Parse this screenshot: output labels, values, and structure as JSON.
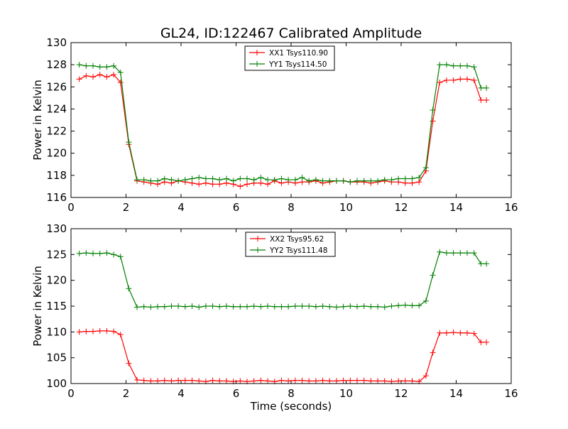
{
  "chart_data": [
    {
      "type": "line",
      "title": "GL24, ID:122467 Calibrated Amplitude",
      "xlabel": "",
      "ylabel": "Power in Kelvin",
      "xlim": [
        0,
        16
      ],
      "ylim": [
        116,
        130
      ],
      "xticks": [
        0,
        2,
        4,
        6,
        8,
        10,
        12,
        14,
        16
      ],
      "yticks": [
        116,
        118,
        120,
        122,
        124,
        126,
        128,
        130
      ],
      "legend_position": "top-center",
      "x": [
        0.3,
        0.55,
        0.8,
        1.05,
        1.3,
        1.55,
        1.8,
        2.1,
        2.4,
        2.65,
        2.9,
        3.15,
        3.4,
        3.65,
        3.9,
        4.15,
        4.4,
        4.65,
        4.9,
        5.15,
        5.4,
        5.65,
        5.9,
        6.15,
        6.4,
        6.65,
        6.9,
        7.15,
        7.4,
        7.65,
        7.9,
        8.15,
        8.4,
        8.65,
        8.9,
        9.15,
        9.4,
        9.65,
        9.9,
        10.15,
        10.4,
        10.65,
        10.9,
        11.15,
        11.4,
        11.65,
        11.9,
        12.15,
        12.4,
        12.65,
        12.9,
        13.15,
        13.4,
        13.65,
        13.9,
        14.15,
        14.4,
        14.65,
        14.9,
        15.1
      ],
      "series": [
        {
          "name": "XX1 Tsys110.90",
          "color": "#ff0000",
          "values": [
            126.7,
            127.0,
            126.9,
            127.1,
            126.9,
            127.1,
            126.4,
            120.8,
            117.5,
            117.4,
            117.3,
            117.2,
            117.4,
            117.3,
            117.5,
            117.4,
            117.3,
            117.2,
            117.3,
            117.2,
            117.2,
            117.3,
            117.2,
            117.0,
            117.2,
            117.3,
            117.3,
            117.2,
            117.5,
            117.3,
            117.4,
            117.3,
            117.4,
            117.4,
            117.5,
            117.3,
            117.4,
            117.5,
            117.5,
            117.4,
            117.4,
            117.4,
            117.3,
            117.4,
            117.5,
            117.4,
            117.4,
            117.3,
            117.3,
            117.4,
            118.4,
            122.9,
            126.4,
            126.6,
            126.6,
            126.7,
            126.7,
            126.6,
            124.8,
            124.8
          ]
        },
        {
          "name": "YY1 Tsys114.50",
          "color": "#008000",
          "values": [
            128.0,
            127.9,
            127.9,
            127.8,
            127.8,
            127.9,
            127.3,
            121.0,
            117.6,
            117.6,
            117.5,
            117.5,
            117.7,
            117.6,
            117.5,
            117.6,
            117.7,
            117.8,
            117.7,
            117.7,
            117.6,
            117.7,
            117.5,
            117.7,
            117.7,
            117.6,
            117.8,
            117.6,
            117.6,
            117.7,
            117.6,
            117.6,
            117.8,
            117.5,
            117.6,
            117.5,
            117.5,
            117.5,
            117.5,
            117.4,
            117.5,
            117.5,
            117.5,
            117.5,
            117.6,
            117.6,
            117.7,
            117.7,
            117.7,
            117.8,
            118.7,
            123.9,
            128.0,
            128.0,
            127.9,
            127.9,
            127.9,
            127.8,
            125.9,
            125.9
          ]
        }
      ]
    },
    {
      "type": "line",
      "title": "",
      "xlabel": "Time (seconds)",
      "ylabel": "Power in Kelvin",
      "xlim": [
        0,
        16
      ],
      "ylim": [
        100,
        130
      ],
      "xticks": [
        0,
        2,
        4,
        6,
        8,
        10,
        12,
        14,
        16
      ],
      "yticks": [
        100,
        105,
        110,
        115,
        120,
        125,
        130
      ],
      "legend_position": "top-center",
      "x": [
        0.3,
        0.55,
        0.8,
        1.05,
        1.3,
        1.55,
        1.8,
        2.1,
        2.4,
        2.65,
        2.9,
        3.15,
        3.4,
        3.65,
        3.9,
        4.15,
        4.4,
        4.65,
        4.9,
        5.15,
        5.4,
        5.65,
        5.9,
        6.15,
        6.4,
        6.65,
        6.9,
        7.15,
        7.4,
        7.65,
        7.9,
        8.15,
        8.4,
        8.65,
        8.9,
        9.15,
        9.4,
        9.65,
        9.9,
        10.15,
        10.4,
        10.65,
        10.9,
        11.15,
        11.4,
        11.65,
        11.9,
        12.15,
        12.4,
        12.65,
        12.9,
        13.15,
        13.4,
        13.65,
        13.9,
        14.15,
        14.4,
        14.65,
        14.9,
        15.1
      ],
      "series": [
        {
          "name": "XX2 Tsys95.62",
          "color": "#ff0000",
          "values": [
            110.0,
            110.1,
            110.1,
            110.2,
            110.2,
            110.1,
            109.5,
            103.9,
            100.7,
            100.6,
            100.5,
            100.5,
            100.6,
            100.5,
            100.6,
            100.6,
            100.6,
            100.5,
            100.4,
            100.6,
            100.5,
            100.5,
            100.4,
            100.5,
            100.4,
            100.5,
            100.6,
            100.5,
            100.4,
            100.6,
            100.5,
            100.6,
            100.6,
            100.5,
            100.5,
            100.6,
            100.5,
            100.5,
            100.6,
            100.6,
            100.6,
            100.6,
            100.5,
            100.5,
            100.5,
            100.4,
            100.5,
            100.5,
            100.5,
            100.4,
            101.5,
            106.0,
            109.8,
            109.8,
            109.9,
            109.8,
            109.8,
            109.7,
            108.0,
            108.0
          ]
        },
        {
          "name": "YY2 Tsys111.48",
          "color": "#008000",
          "values": [
            125.2,
            125.3,
            125.2,
            125.2,
            125.3,
            125.0,
            124.6,
            118.4,
            114.8,
            114.9,
            114.8,
            114.9,
            114.9,
            115.0,
            115.0,
            114.9,
            115.0,
            114.8,
            115.0,
            115.0,
            114.9,
            115.0,
            114.9,
            114.9,
            114.9,
            115.0,
            114.9,
            115.0,
            114.9,
            114.9,
            114.9,
            115.0,
            115.0,
            115.0,
            114.9,
            115.0,
            114.9,
            114.8,
            114.9,
            115.0,
            114.9,
            115.0,
            114.9,
            114.9,
            114.8,
            115.0,
            115.1,
            115.2,
            115.1,
            115.1,
            116.0,
            121.0,
            125.5,
            125.3,
            125.3,
            125.3,
            125.3,
            125.3,
            123.2,
            123.2
          ]
        }
      ]
    }
  ]
}
